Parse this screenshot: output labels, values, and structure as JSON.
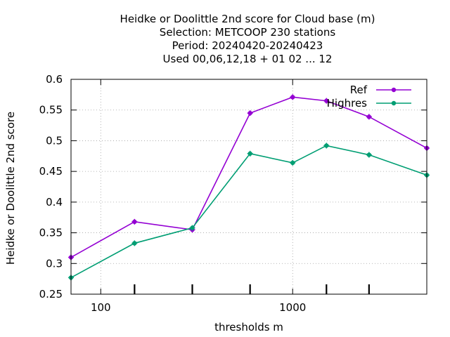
{
  "chart_data": {
    "type": "line",
    "title": [
      "Heidke or Doolittle 2nd score  for Cloud base (m)",
      "Selection: METCOOP    230 stations",
      "Period: 20240420-20240423",
      "Used  00,06,12,18 + 01 02 ... 12"
    ],
    "xlabel": "thresholds m",
    "ylabel": "Heidke or Doolittle 2nd score",
    "x_scale": "log",
    "xlim": [
      70,
      5000
    ],
    "ylim": [
      0.25,
      0.6
    ],
    "x_ticks": [
      100,
      1000
    ],
    "x_minor_ticks": [
      150,
      300,
      600,
      1500,
      2500
    ],
    "y_ticks": [
      0.25,
      0.3,
      0.35,
      0.4,
      0.45,
      0.5,
      0.55,
      0.6
    ],
    "y_tick_labels": [
      "0.25",
      "0.3",
      "0.35",
      "0.4",
      "0.45",
      "0.5",
      "0.55",
      "0.6"
    ],
    "x_tick_labels": [
      "100",
      "1000"
    ],
    "grid": true,
    "legend_position": "top-right",
    "x": [
      70,
      150,
      300,
      600,
      1000,
      1500,
      2500,
      5000
    ],
    "series": [
      {
        "name": "Ref",
        "color": "#9400d3",
        "values": [
          0.31,
          0.368,
          0.355,
          0.545,
          0.571,
          0.565,
          0.539,
          0.488
        ]
      },
      {
        "name": "Highres",
        "color": "#009e73",
        "values": [
          0.277,
          0.333,
          0.358,
          0.479,
          0.464,
          0.492,
          0.477,
          0.444
        ]
      }
    ]
  }
}
